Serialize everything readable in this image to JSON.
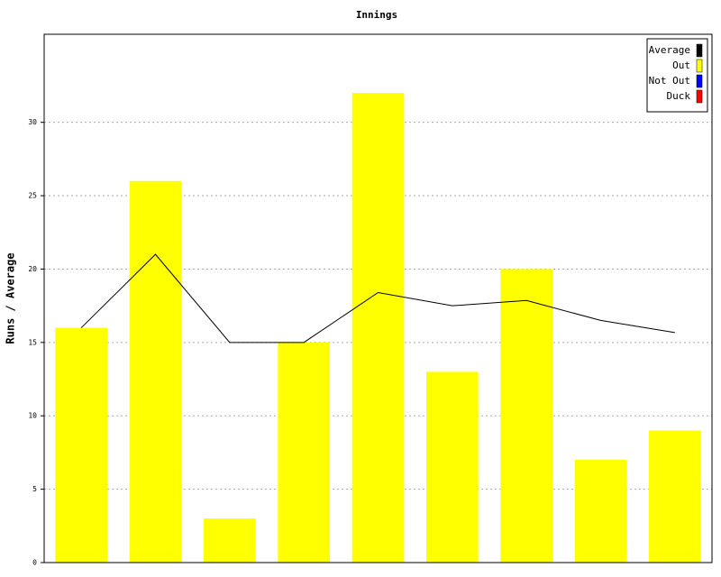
{
  "chart_data": {
    "type": "bar",
    "title": "Innings",
    "y_label": "Runs / Average",
    "categories": [
      null,
      null,
      null,
      null,
      null,
      null,
      null,
      null,
      null
    ],
    "series": [
      {
        "name": "Average",
        "color": "#000000",
        "type": "line",
        "values": [
          16,
          21,
          15,
          15,
          18.4,
          17.5,
          17.86,
          16.5,
          15.67
        ]
      },
      {
        "name": "Out",
        "color": "#ffff00",
        "type": "bar",
        "values": [
          16,
          26,
          3,
          15,
          32,
          13,
          20,
          7,
          9
        ]
      },
      {
        "name": "Not Out",
        "color": "#0000ff",
        "type": "bar",
        "values": [
          null,
          null,
          null,
          null,
          null,
          null,
          null,
          null,
          null
        ]
      },
      {
        "name": "Duck",
        "color": "#ff0000",
        "type": "bar",
        "values": [
          null,
          null,
          null,
          null,
          null,
          null,
          null,
          null,
          null
        ]
      }
    ],
    "ylim": [
      0,
      36
    ],
    "yticks": [
      0,
      5,
      10,
      15,
      20,
      25,
      30
    ],
    "grid": true,
    "legend": "top-right"
  }
}
